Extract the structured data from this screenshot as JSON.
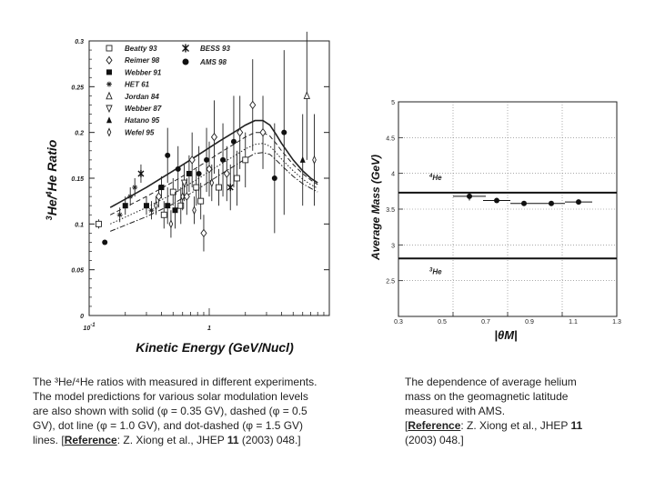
{
  "chart_data": [
    {
      "type": "scatter",
      "xlabel": "Kinetic Energy (GeV/Nucl)",
      "ylabel_parts": [
        "3",
        "He/",
        "4",
        "He Ratio"
      ],
      "xscale": "log",
      "xlim": [
        0.1,
        10
      ],
      "ylim": [
        0,
        0.3
      ],
      "yticks": [
        "0",
        "0.05",
        "0.1",
        "0.15",
        "0.2",
        "0.25",
        "0.3"
      ],
      "xtick_labels": [
        {
          "x": 0.1,
          "label": "10",
          "sup": "-1"
        },
        {
          "x": 1,
          "label": "1"
        }
      ],
      "legend": {
        "position": "top-left",
        "col1": [
          {
            "label": "Beatty 93",
            "marker": "open-square"
          },
          {
            "label": "Reimer 98",
            "marker": "open-diamond"
          },
          {
            "label": "Webber 91",
            "marker": "filled-square"
          },
          {
            "label": "HET 61",
            "marker": "asterisk"
          },
          {
            "label": "Jordan 84",
            "marker": "open-triangle"
          },
          {
            "label": "Webber 87",
            "marker": "down-tri"
          },
          {
            "label": "Hatano 95",
            "marker": "filled-triangle"
          },
          {
            "label": "Wefel 95",
            "marker": "thin-diamond"
          }
        ],
        "col2": [
          {
            "label": "BESS 93",
            "marker": "star"
          },
          {
            "label": "AMS 98",
            "marker": "filled-circle"
          }
        ]
      },
      "curves": [
        {
          "style": "solid",
          "x": [
            0.15,
            0.3,
            0.5,
            0.8,
            1.2,
            1.6,
            2.0,
            2.4,
            2.8,
            3.2,
            3.6,
            4,
            5,
            6,
            7,
            8
          ],
          "y": [
            0.118,
            0.14,
            0.158,
            0.175,
            0.19,
            0.2,
            0.208,
            0.213,
            0.213,
            0.208,
            0.198,
            0.188,
            0.17,
            0.158,
            0.15,
            0.145
          ]
        },
        {
          "style": "dashed",
          "x": [
            0.15,
            0.3,
            0.5,
            0.8,
            1.2,
            1.6,
            2.0,
            2.4,
            2.8,
            3.2,
            3.6,
            4,
            5,
            6,
            7,
            8
          ],
          "y": [
            0.11,
            0.13,
            0.146,
            0.162,
            0.177,
            0.187,
            0.195,
            0.2,
            0.2,
            0.196,
            0.188,
            0.18,
            0.165,
            0.155,
            0.148,
            0.143
          ]
        },
        {
          "style": "dotted",
          "x": [
            0.15,
            0.3,
            0.5,
            0.8,
            1.2,
            1.6,
            2.0,
            2.4,
            2.8,
            3.2,
            3.6,
            4,
            5,
            6,
            7,
            8
          ],
          "y": [
            0.1,
            0.118,
            0.133,
            0.149,
            0.164,
            0.174,
            0.182,
            0.187,
            0.188,
            0.185,
            0.178,
            0.171,
            0.158,
            0.149,
            0.143,
            0.139
          ]
        },
        {
          "style": "dash-dot",
          "x": [
            0.15,
            0.3,
            0.5,
            0.8,
            1.2,
            1.6,
            2.0,
            2.4,
            2.8,
            3.2,
            3.6,
            4,
            5,
            6,
            7,
            8
          ],
          "y": [
            0.092,
            0.108,
            0.122,
            0.138,
            0.153,
            0.163,
            0.171,
            0.177,
            0.178,
            0.176,
            0.17,
            0.164,
            0.152,
            0.144,
            0.139,
            0.135
          ]
        }
      ],
      "points": [
        {
          "x": 0.12,
          "y": 0.1,
          "marker": "open-square",
          "err": 0.005
        },
        {
          "x": 0.135,
          "y": 0.08,
          "marker": "filled-circle",
          "err": 0
        },
        {
          "x": 0.18,
          "y": 0.11,
          "marker": "asterisk",
          "err": 0.008
        },
        {
          "x": 0.2,
          "y": 0.12,
          "marker": "filled-square",
          "err": 0.01
        },
        {
          "x": 0.22,
          "y": 0.13,
          "marker": "asterisk",
          "err": 0.01
        },
        {
          "x": 0.24,
          "y": 0.14,
          "marker": "asterisk",
          "err": 0.01
        },
        {
          "x": 0.27,
          "y": 0.155,
          "marker": "star",
          "err": 0.01
        },
        {
          "x": 0.3,
          "y": 0.12,
          "marker": "filled-square",
          "err": 0.01
        },
        {
          "x": 0.33,
          "y": 0.115,
          "marker": "asterisk",
          "err": 0.01
        },
        {
          "x": 0.36,
          "y": 0.12,
          "marker": "thin-diamond",
          "err": 0.01
        },
        {
          "x": 0.38,
          "y": 0.13,
          "marker": "open-diamond",
          "err": 0.012
        },
        {
          "x": 0.4,
          "y": 0.14,
          "marker": "filled-square",
          "err": 0.012
        },
        {
          "x": 0.42,
          "y": 0.11,
          "marker": "open-square",
          "err": 0.015
        },
        {
          "x": 0.45,
          "y": 0.12,
          "marker": "filled-square",
          "err": 0.02
        },
        {
          "x": 0.45,
          "y": 0.175,
          "marker": "filled-circle",
          "err": 0.03
        },
        {
          "x": 0.48,
          "y": 0.1,
          "marker": "thin-diamond",
          "err": 0.015
        },
        {
          "x": 0.5,
          "y": 0.135,
          "marker": "open-square",
          "err": 0.015
        },
        {
          "x": 0.52,
          "y": 0.115,
          "marker": "filled-square",
          "err": 0.02
        },
        {
          "x": 0.55,
          "y": 0.16,
          "marker": "filled-circle",
          "err": 0.025
        },
        {
          "x": 0.58,
          "y": 0.12,
          "marker": "open-square",
          "err": 0.02
        },
        {
          "x": 0.6,
          "y": 0.13,
          "marker": "thin-diamond",
          "err": 0.015
        },
        {
          "x": 0.62,
          "y": 0.145,
          "marker": "down-tri",
          "err": 0.02
        },
        {
          "x": 0.65,
          "y": 0.13,
          "marker": "open-diamond",
          "err": 0.02
        },
        {
          "x": 0.68,
          "y": 0.155,
          "marker": "filled-square",
          "err": 0.02
        },
        {
          "x": 0.72,
          "y": 0.17,
          "marker": "open-diamond",
          "err": 0.03
        },
        {
          "x": 0.75,
          "y": 0.115,
          "marker": "thin-diamond",
          "err": 0.015
        },
        {
          "x": 0.78,
          "y": 0.14,
          "marker": "open-square",
          "err": 0.02
        },
        {
          "x": 0.82,
          "y": 0.155,
          "marker": "filled-circle",
          "err": 0.03
        },
        {
          "x": 0.85,
          "y": 0.125,
          "marker": "open-square",
          "err": 0.02
        },
        {
          "x": 0.9,
          "y": 0.09,
          "marker": "open-diamond",
          "err": 0.02
        },
        {
          "x": 0.95,
          "y": 0.17,
          "marker": "filled-circle",
          "err": 0.035
        },
        {
          "x": 1.0,
          "y": 0.16,
          "marker": "open-diamond",
          "err": 0.03
        },
        {
          "x": 1.05,
          "y": 0.145,
          "marker": "thin-diamond",
          "err": 0.02
        },
        {
          "x": 1.1,
          "y": 0.195,
          "marker": "open-diamond",
          "err": 0.04
        },
        {
          "x": 1.2,
          "y": 0.14,
          "marker": "open-square",
          "err": 0.02
        },
        {
          "x": 1.3,
          "y": 0.17,
          "marker": "filled-circle",
          "err": 0.04
        },
        {
          "x": 1.4,
          "y": 0.155,
          "marker": "open-diamond",
          "err": 0.03
        },
        {
          "x": 1.5,
          "y": 0.14,
          "marker": "star",
          "err": 0.025
        },
        {
          "x": 1.6,
          "y": 0.19,
          "marker": "filled-circle",
          "err": 0.05
        },
        {
          "x": 1.7,
          "y": 0.15,
          "marker": "open-square",
          "err": 0.03
        },
        {
          "x": 1.8,
          "y": 0.2,
          "marker": "open-diamond",
          "err": 0.04
        },
        {
          "x": 2.0,
          "y": 0.17,
          "marker": "open-square",
          "err": 0.03
        },
        {
          "x": 2.3,
          "y": 0.23,
          "marker": "open-diamond",
          "err": 0.05
        },
        {
          "x": 2.8,
          "y": 0.2,
          "marker": "open-diamond",
          "err": 0.04
        },
        {
          "x": 3.5,
          "y": 0.15,
          "marker": "filled-circle",
          "err": 0.06
        },
        {
          "x": 4.2,
          "y": 0.2,
          "marker": "filled-circle",
          "err": 0.09
        },
        {
          "x": 6.0,
          "y": 0.17,
          "marker": "filled-triangle",
          "err": 0.05
        },
        {
          "x": 6.5,
          "y": 0.24,
          "marker": "open-triangle",
          "err": 0.07
        },
        {
          "x": 7.5,
          "y": 0.17,
          "marker": "thin-diamond",
          "err": 0.05
        }
      ]
    },
    {
      "type": "scatter",
      "xlabel": "|θM|",
      "ylabel": "Average Mass (GeV)",
      "xlim": [
        0.5,
        1.3
      ],
      "ylim": [
        2.0,
        5.0
      ],
      "xticks": [
        "0.5",
        "0.7",
        "0.9",
        "1.1",
        "1.3"
      ],
      "xticks_extra": [
        "0.3",
        "0.5",
        "0.7",
        "0.9",
        "1.1",
        "1.3"
      ],
      "yticks": [
        "2.5",
        "3",
        "3.5",
        "4",
        "4.5",
        "5"
      ],
      "reference_lines": [
        {
          "label": "4He",
          "y": 3.73
        },
        {
          "label": "3He",
          "y": 2.81
        }
      ],
      "points": [
        {
          "x": 0.76,
          "y": 3.68,
          "xerr": 0.06,
          "yerr": 0.06
        },
        {
          "x": 0.86,
          "y": 3.62,
          "xerr": 0.05,
          "yerr": 0.0
        },
        {
          "x": 0.96,
          "y": 3.58,
          "xerr": 0.05,
          "yerr": 0.0
        },
        {
          "x": 1.06,
          "y": 3.58,
          "xerr": 0.05,
          "yerr": 0.0
        },
        {
          "x": 1.16,
          "y": 3.6,
          "xerr": 0.05,
          "yerr": 0.0
        }
      ]
    }
  ],
  "captions": {
    "left": {
      "line1": "The ³He/⁴He ratios with measured in different experiments.",
      "line2": "The model predictions for various solar modulation levels",
      "line3": "are also shown with solid (φ = 0.35 GV), dashed (φ = 0.5",
      "line4": "GV), dot line (φ = 1.0 GV), and dot-dashed (φ = 1.5 GV)",
      "line5_pre": "lines. [",
      "ref_word": "Reference",
      "line5_post": ": Z. Xiong et al., JHEP ",
      "vol": "11",
      "line5_end": " (2003) 048.]"
    },
    "right": {
      "line1": "The dependence of average helium",
      "line2": "mass on the geomagnetic latitude",
      "line3": "measured with AMS.",
      "line4_pre": "[",
      "ref_word": "Reference",
      "line4_post": ": Z. Xiong et al., JHEP ",
      "vol": "11",
      "line5": "(2003) 048.]"
    }
  }
}
